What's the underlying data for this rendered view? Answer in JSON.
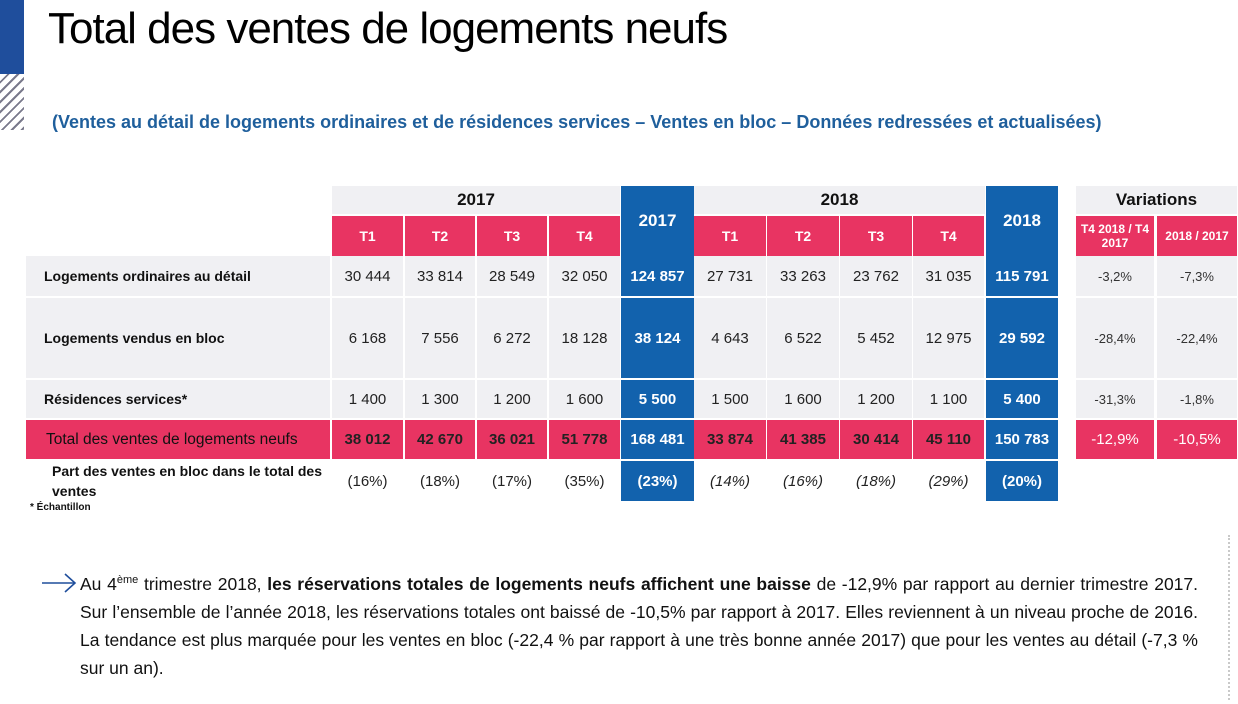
{
  "title": "Total des ventes de logements neufs",
  "subtitle": "(Ventes au détail de logements ordinaires et de résidences services – Ventes en bloc – Données redressées et actualisées)",
  "table": {
    "year_2017": "2017",
    "year_2018": "2018",
    "total_2017": "2017",
    "total_2018": "2018",
    "variations_title": "Variations",
    "quarters_2017": [
      "T1",
      "T2",
      "T3",
      "T4"
    ],
    "quarters_2018": [
      "T1",
      "T2",
      "T3",
      "T4"
    ],
    "var_head_1": "T4 2018 / T4 2017",
    "var_head_2": "2018 / 2017",
    "rows": [
      {
        "label": "Logements ordinaires au détail",
        "q2017": [
          "30 444",
          "33 814",
          "28 549",
          "32 050"
        ],
        "total2017": "124 857",
        "q2018": [
          "27 731",
          "33 263",
          "23 762",
          "31 035"
        ],
        "total2018": "115 791",
        "var1": "-3,2%",
        "var2": "-7,3%"
      },
      {
        "label": "Logements vendus en bloc",
        "q2017": [
          "6 168",
          "7 556",
          "6 272",
          "18 128"
        ],
        "total2017": "38 124",
        "q2018": [
          "4 643",
          "6 522",
          "5 452",
          "12 975"
        ],
        "total2018": "29 592",
        "var1": "-28,4%",
        "var2": "-22,4%"
      },
      {
        "label": "Résidences services*",
        "q2017": [
          "1 400",
          "1 300",
          "1 200",
          "1 600"
        ],
        "total2017": "5 500",
        "q2018": [
          "1 500",
          "1 600",
          "1 200",
          "1 100"
        ],
        "total2018": "5 400",
        "var1": "-31,3%",
        "var2": "-1,8%"
      },
      {
        "label": "Total des ventes de logements neufs",
        "q2017": [
          "38 012",
          "42 670",
          "36 021",
          "51 778"
        ],
        "total2017": "168 481",
        "q2018": [
          "33 874",
          "41 385",
          "30 414",
          "45 110"
        ],
        "total2018": "150 783",
        "var1": "-12,9%",
        "var2": "-10,5%"
      },
      {
        "label": "Part des ventes en bloc dans le total des ventes",
        "q2017": [
          "(16%)",
          "(18%)",
          "(17%)",
          "(35%)"
        ],
        "total2017": "(23%)",
        "q2018": [
          "(14%)",
          "(16%)",
          "(18%)",
          "(29%)"
        ],
        "total2018": "(20%)"
      }
    ]
  },
  "footnote": "* Échantillon",
  "paragraph": {
    "part1": "Au 4",
    "sup": "ème",
    "part2": " trimestre 2018, ",
    "bold": "les réservations totales de logements neufs affichent une baisse",
    "part3": " de -12,9% par rapport au dernier trimestre 2017. Sur l’ensemble de l’année 2018, les réservations totales ont baissé de -10,5% par rapport à 2017. Elles reviennent à un niveau proche de 2016. La tendance est plus marquée pour les ventes en bloc (-22,4 % par rapport à une très bonne année 2017) que pour les ventes au détail (-7,3 % sur un an)."
  },
  "colors": {
    "accent_pink": "#e83462",
    "accent_blue": "#1262ad",
    "subtitle_blue": "#1f5f9c"
  },
  "icons": [
    "arrow-right-icon"
  ]
}
